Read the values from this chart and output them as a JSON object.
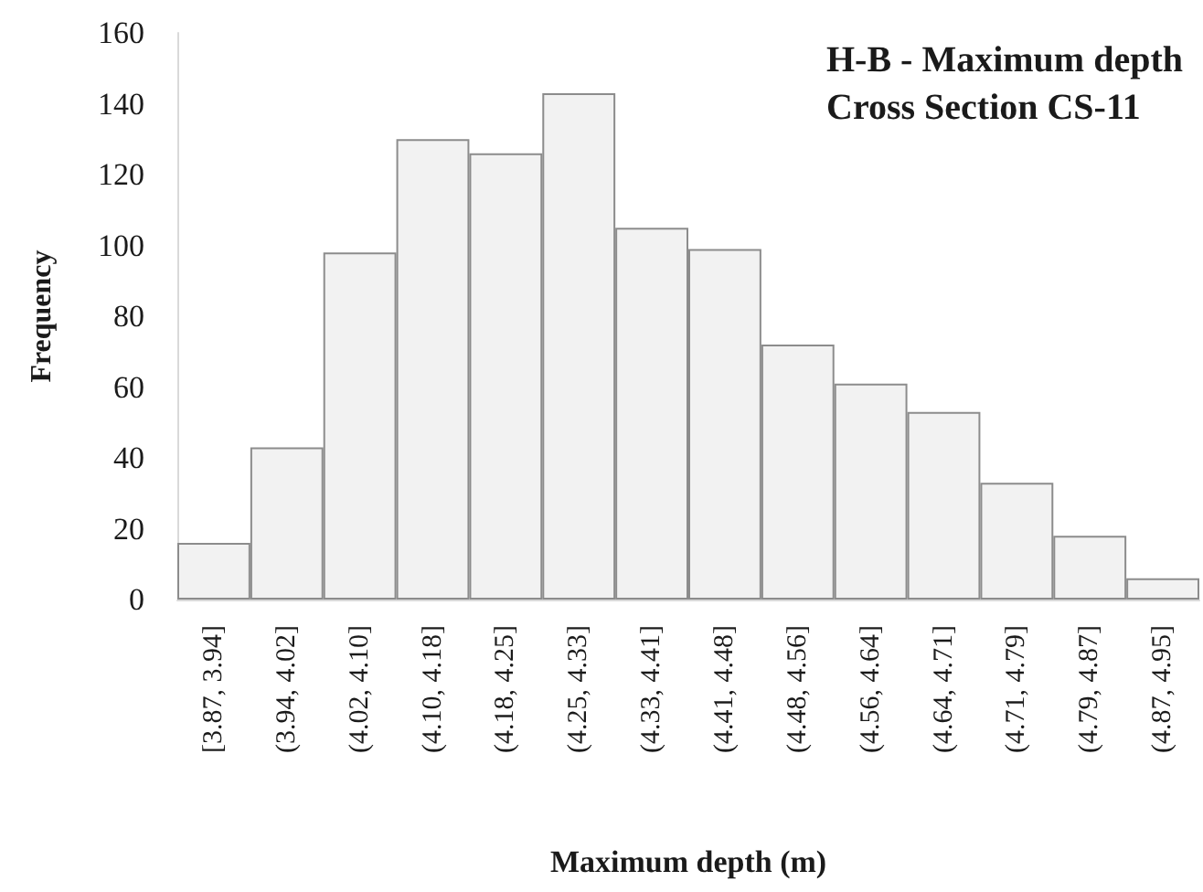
{
  "chart_data": {
    "type": "bar",
    "title": "H-B - Maximum depth",
    "subtitle": "Cross Section CS-11",
    "xlabel": "Maximum depth (m)",
    "ylabel": "Frequency",
    "categories": [
      "[3.87, 3.94]",
      "(3.94, 4.02]",
      "(4.02, 4.10]",
      "(4.10, 4.18]",
      "(4.18, 4.25]",
      "(4.25, 4.33]",
      "(4.33, 4.41]",
      "(4.41, 4.48]",
      "(4.48, 4.56]",
      "(4.56, 4.64]",
      "(4.64, 4.71]",
      "(4.71, 4.79]",
      "(4.79, 4.87]",
      "(4.87, 4.95]"
    ],
    "values": [
      16,
      43,
      98,
      130,
      126,
      143,
      105,
      99,
      72,
      61,
      53,
      33,
      18,
      6
    ],
    "color": "#f2f2f2",
    "ylim": [
      0,
      160
    ],
    "yticks": [
      0,
      20,
      40,
      60,
      80,
      100,
      120,
      140,
      160
    ],
    "grid": false
  }
}
